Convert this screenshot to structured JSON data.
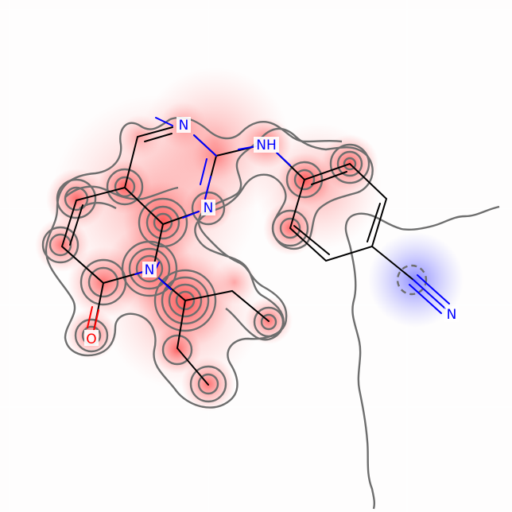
{
  "atom_labels": {
    "n_top": "N",
    "nh": "NH",
    "n_ring": "N",
    "n_lactam": "N",
    "o": "O",
    "n_nitrile": "N"
  },
  "colors": {
    "background": "#ffffff",
    "bond": "#000000",
    "nitrogen": "#0000ff",
    "oxygen": "#ff0000",
    "contour": "#6e6e6e",
    "positive_weight": "#ff0000",
    "negative_weight": "#0000ff"
  }
}
